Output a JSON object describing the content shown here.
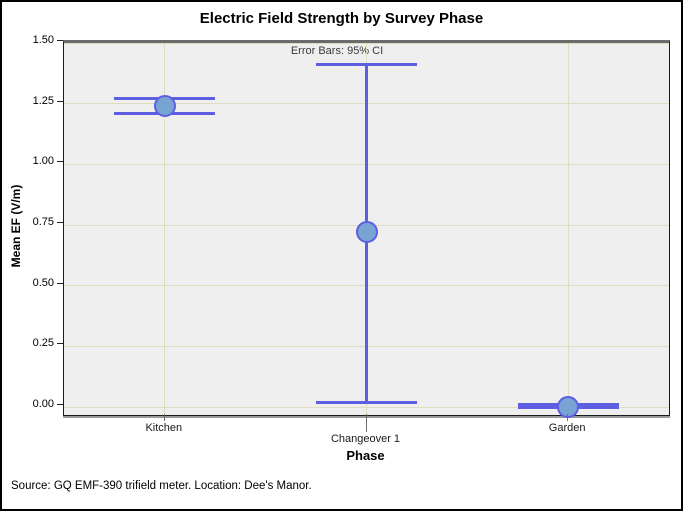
{
  "window": {
    "background": "#ffffff",
    "border_color": "#000000"
  },
  "chart_data": {
    "type": "scatter",
    "title": "Electric Field Strength by Survey Phase",
    "xlabel": "Phase",
    "ylabel": "Mean EF (V/m)",
    "annotation": "Error Bars: 95% CI",
    "categories": [
      "Kitchen",
      "Changeover 1",
      "Garden"
    ],
    "series": [
      {
        "name": "Mean EF (V/m)",
        "means": [
          1.24,
          0.72,
          0.0
        ],
        "ci_low": [
          1.21,
          0.02,
          0.0
        ],
        "ci_high": [
          1.27,
          1.41,
          0.01
        ]
      }
    ],
    "ylim": [
      0,
      1.5
    ],
    "yticks": [
      "1.50",
      "1.25",
      "1.00",
      "0.75",
      "0.50",
      "0.25",
      "0.00"
    ],
    "grid": true,
    "legend_position": "none",
    "plot_background": "#efefef",
    "gridline_color": "#dedebe"
  },
  "colors": {
    "marker_fill": "#78a4d4",
    "error_bar": "#5e5ee2",
    "plot_bg": "#efefef",
    "gridline": "#dedebe",
    "frame": "#1a1a1a",
    "frame_top": "#6b6b6b"
  },
  "footer": {
    "text": "Source: GQ EMF-390 trifield meter. Location: Dee's Manor."
  }
}
